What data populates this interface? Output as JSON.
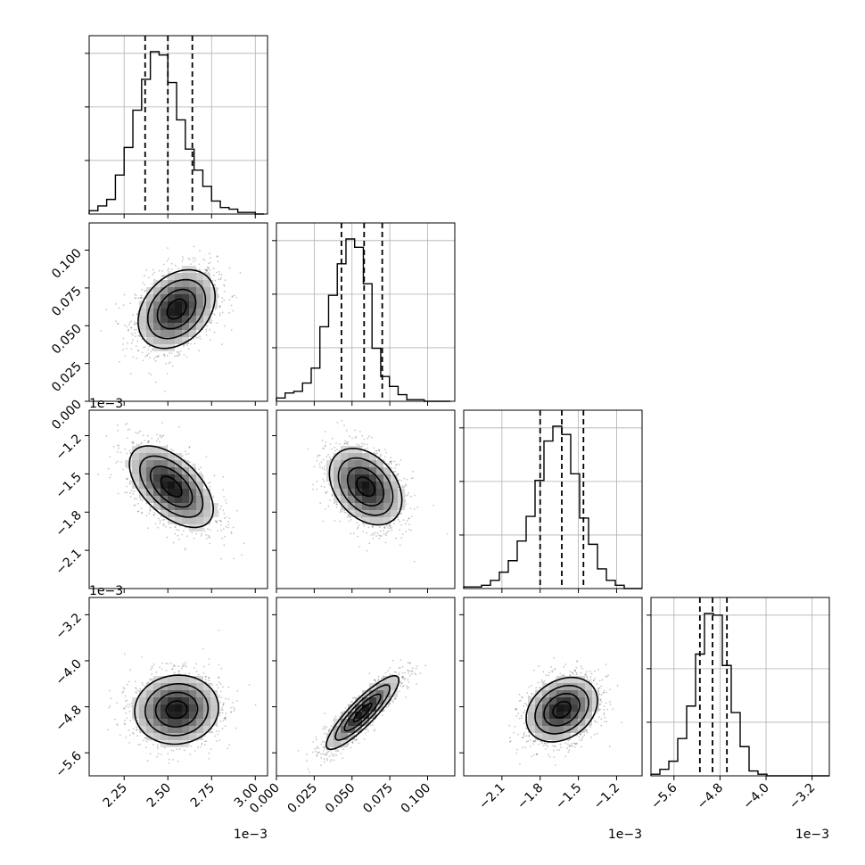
{
  "chart_data": {
    "type": "corner",
    "n_params": 4,
    "axis_ticks": [
      {
        "ticks": [
          2.25,
          2.5,
          2.75,
          3.0
        ],
        "labels": [
          "2.25",
          "2.50",
          "2.75",
          "3.00"
        ],
        "range": [
          2.05,
          3.07
        ],
        "offset": "1e−3"
      },
      {
        "ticks": [
          0.0,
          0.025,
          0.05,
          0.075,
          0.1
        ],
        "labels": [
          "0.000",
          "0.025",
          "0.050",
          "0.075",
          "0.100"
        ],
        "range": [
          0.0,
          0.118
        ],
        "offset": ""
      },
      {
        "ticks": [
          -2.1,
          -1.8,
          -1.5,
          -1.2
        ],
        "labels": [
          "−2.1",
          "−1.8",
          "−1.5",
          "−1.2"
        ],
        "range": [
          -2.4,
          -1.0
        ],
        "offset": "1e−3"
      },
      {
        "ticks": [
          -5.6,
          -4.8,
          -4.0,
          -3.2
        ],
        "labels": [
          "−5.6",
          "−4.8",
          "−4.0",
          "−3.2"
        ],
        "range": [
          -6.0,
          -2.9
        ],
        "offset": "1e−3"
      }
    ],
    "quantiles": [
      [
        2.37,
        2.5,
        2.64
      ],
      [
        0.043,
        0.058,
        0.07
      ],
      [
        -1.8,
        -1.63,
        -1.46
      ],
      [
        -5.15,
        -4.93,
        -4.68
      ]
    ],
    "histograms": [
      {
        "edges_start": 2.05,
        "bin_width": 0.05,
        "values": [
          2,
          5,
          9,
          24,
          41,
          64,
          83,
          100,
          98,
          81,
          58,
          40,
          27,
          17,
          8,
          4,
          3,
          1,
          1,
          0
        ]
      },
      {
        "edges_start": 0.0,
        "bin_width": 0.00575,
        "values": [
          2,
          5,
          6,
          11,
          20,
          45,
          64,
          83,
          98,
          93,
          71,
          32,
          15,
          9,
          4,
          1,
          1,
          0,
          0,
          0
        ]
      },
      {
        "edges_start": -2.4,
        "bin_width": 0.07,
        "values": [
          1,
          1,
          2,
          5,
          10,
          17,
          29,
          44,
          66,
          90,
          99,
          94,
          70,
          43,
          27,
          12,
          5,
          2,
          0,
          0
        ]
      },
      {
        "edges_start": -6.0,
        "bin_width": 0.155,
        "values": [
          1,
          4,
          9,
          23,
          43,
          75,
          100,
          99,
          68,
          39,
          18,
          3,
          1,
          0,
          0,
          0,
          0,
          0,
          0,
          0
        ]
      }
    ],
    "pairs": [
      {
        "row": 1,
        "col": 0,
        "center": [
          2.55,
          0.061
        ],
        "sigma": [
          0.11,
          0.013
        ],
        "rho": 0.32
      },
      {
        "row": 2,
        "col": 0,
        "center": [
          2.52,
          -1.6
        ],
        "sigma": [
          0.12,
          0.16
        ],
        "rho": -0.55
      },
      {
        "row": 2,
        "col": 1,
        "center": [
          0.059,
          -1.6
        ],
        "sigma": [
          0.012,
          0.15
        ],
        "rho": -0.35
      },
      {
        "row": 3,
        "col": 0,
        "center": [
          2.55,
          -4.85
        ],
        "sigma": [
          0.12,
          0.3
        ],
        "rho": 0.05
      },
      {
        "row": 3,
        "col": 1,
        "center": [
          0.057,
          -4.9
        ],
        "sigma": [
          0.012,
          0.32
        ],
        "rho": 0.88
      },
      {
        "row": 3,
        "col": 2,
        "center": [
          -1.63,
          -4.85
        ],
        "sigma": [
          0.14,
          0.28
        ],
        "rho": 0.28
      }
    ],
    "contour_levels": [
      0.5,
      1.0,
      1.5,
      2.0
    ],
    "grid": true
  }
}
